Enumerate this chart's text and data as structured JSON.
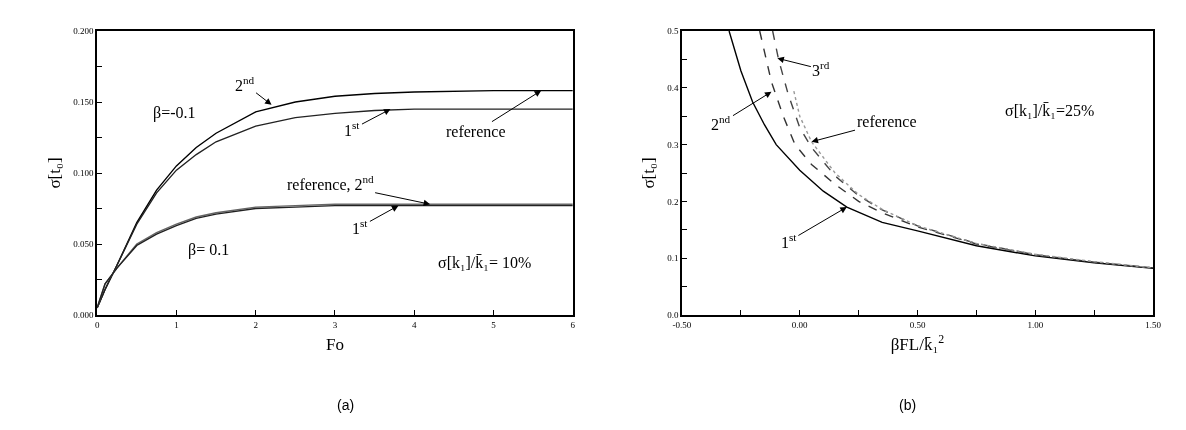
{
  "chart_data": [
    {
      "type": "line",
      "xlabel": "Fo",
      "ylabel": "σ[t₀]",
      "xlim": [
        0,
        6
      ],
      "xticks": [
        0,
        1,
        2,
        3,
        4,
        5,
        6
      ],
      "ylim": [
        0,
        0.2
      ],
      "yticks": [
        {
          "value": 0,
          "label": "0.000"
        },
        {
          "value": 0.025,
          "label": null
        },
        {
          "value": 0.05,
          "label": "0.050"
        },
        {
          "value": 0.075,
          "label": null
        },
        {
          "value": 0.1,
          "label": "0.100"
        },
        {
          "value": 0.125,
          "label": null
        },
        {
          "value": 0.15,
          "label": "0.150"
        },
        {
          "value": 0.175,
          "label": null
        },
        {
          "value": 0.2,
          "label": "0.200"
        }
      ],
      "x": [
        0,
        0.1,
        0.25,
        0.5,
        0.75,
        1,
        1.25,
        1.5,
        2,
        2.5,
        3,
        3.5,
        4,
        5,
        6
      ],
      "series": [
        {
          "color": "#000000",
          "values": [
            0.005,
            0.018,
            0.035,
            0.065,
            0.088,
            0.105,
            0.118,
            0.128,
            0.143,
            0.15,
            0.154,
            0.156,
            0.157,
            0.158,
            0.158
          ]
        },
        {
          "color": "#222222",
          "values": [
            0.005,
            0.018,
            0.035,
            0.064,
            0.086,
            0.102,
            0.113,
            0.122,
            0.133,
            0.139,
            0.142,
            0.144,
            0.145,
            0.145,
            0.145
          ]
        },
        {
          "color": "#666666",
          "values": [
            0.005,
            0.022,
            0.033,
            0.05,
            0.058,
            0.064,
            0.069,
            0.072,
            0.076,
            0.077,
            0.078,
            0.078,
            0.078,
            0.078,
            0.078
          ]
        },
        {
          "color": "#222222",
          "values": [
            0.005,
            0.022,
            0.033,
            0.049,
            0.057,
            0.063,
            0.068,
            0.071,
            0.075,
            0.076,
            0.077,
            0.077,
            0.077,
            0.077,
            0.077
          ]
        }
      ],
      "annotations": [
        {
          "text": "2$^{nd}$",
          "x": 2.2,
          "y": 0.148
        },
        {
          "text": "1$^{st}$",
          "x": 3.7,
          "y": 0.145
        },
        {
          "text": "reference",
          "x": 5.6,
          "y": 0.158
        },
        {
          "text": "reference, 2$^{nd}$",
          "x": 4.2,
          "y": 0.078
        },
        {
          "text": "1$^{st}$",
          "x": 3.8,
          "y": 0.077
        },
        "β=-0.1",
        "β= 0.1",
        "σ[k₁]/k̄₁= 10%",
        "(a)"
      ]
    },
    {
      "type": "line",
      "xlabel": "βFL/k̄₁$^{2}$",
      "ylabel": "σ[t₀]",
      "xlim": [
        -0.5,
        1.5
      ],
      "xticks": [
        {
          "value": -0.5,
          "label": "-0.50"
        },
        {
          "value": -0.25,
          "label": null
        },
        {
          "value": 0,
          "label": "0.00"
        },
        {
          "value": 0.25,
          "label": null
        },
        {
          "value": 0.5,
          "label": "0.50"
        },
        {
          "value": 0.75,
          "label": null
        },
        {
          "value": 1,
          "label": "1.00"
        },
        {
          "value": 1.25,
          "label": null
        },
        {
          "value": 1.5,
          "label": "1.50"
        }
      ],
      "ylim": [
        0,
        0.5
      ],
      "yticks": [
        {
          "value": 0,
          "label": "0.0"
        },
        {
          "value": 0.05,
          "label": null
        },
        {
          "value": 0.1,
          "label": "0.1"
        },
        {
          "value": 0.15,
          "label": null
        },
        {
          "value": 0.2,
          "label": "0.2"
        },
        {
          "value": 0.25,
          "label": null
        },
        {
          "value": 0.3,
          "label": "0.3"
        },
        {
          "value": 0.35,
          "label": null
        },
        {
          "value": 0.4,
          "label": "0.4"
        },
        {
          "value": 0.45,
          "label": null
        },
        {
          "value": 0.5,
          "label": "0.5"
        }
      ],
      "series": [
        {
          "color": "#000000",
          "line_style": "solid",
          "x": [
            -0.3,
            -0.25,
            -0.2,
            -0.15,
            -0.1,
            0,
            0.1,
            0.2,
            0.35,
            0.5,
            0.75,
            1.0,
            1.25,
            1.5
          ],
          "values": [
            0.5,
            0.43,
            0.375,
            0.335,
            0.3,
            0.255,
            0.218,
            0.19,
            0.163,
            0.148,
            0.122,
            0.104,
            0.092,
            0.082
          ]
        },
        {
          "color": "#333333",
          "line_style": "dashed",
          "x": [
            -0.17,
            -0.12,
            -0.07,
            -0.02,
            0.05,
            0.15,
            0.25,
            0.35,
            0.5,
            0.75,
            1.0,
            1.25,
            1.5
          ],
          "values": [
            0.5,
            0.41,
            0.35,
            0.3,
            0.265,
            0.23,
            0.2,
            0.18,
            0.155,
            0.125,
            0.106,
            0.093,
            0.083
          ]
        },
        {
          "color": "#444444",
          "line_style": "dashed",
          "x": [
            -0.115,
            -0.09,
            -0.05,
            0,
            0.05,
            0.15,
            0.25,
            0.35,
            0.5,
            0.75,
            1.0,
            1.25,
            1.5
          ],
          "values": [
            0.5,
            0.45,
            0.39,
            0.33,
            0.295,
            0.245,
            0.21,
            0.185,
            0.157,
            0.126,
            0.106,
            0.093,
            0.083
          ]
        },
        {
          "color": "#999999",
          "line_style": "dotted",
          "x": [
            -0.025,
            0,
            0.05,
            0.15,
            0.25,
            0.35,
            0.5,
            0.75,
            1.0,
            1.25,
            1.5
          ],
          "values": [
            0.394,
            0.35,
            0.305,
            0.25,
            0.212,
            0.186,
            0.157,
            0.126,
            0.107,
            0.094,
            0.083
          ]
        }
      ],
      "annotations": [
        {
          "text": "3$^{rd}$",
          "x": -0.095,
          "y": 0.452
        },
        {
          "text": "2$^{nd}$",
          "x": -0.12,
          "y": 0.393
        },
        {
          "text": "reference",
          "x": 0.05,
          "y": 0.305
        },
        {
          "text": "1$^{st}$",
          "x": 0.2,
          "y": 0.19
        },
        "σ[k₁]/k̄₁=25%",
        "(b)"
      ]
    }
  ]
}
